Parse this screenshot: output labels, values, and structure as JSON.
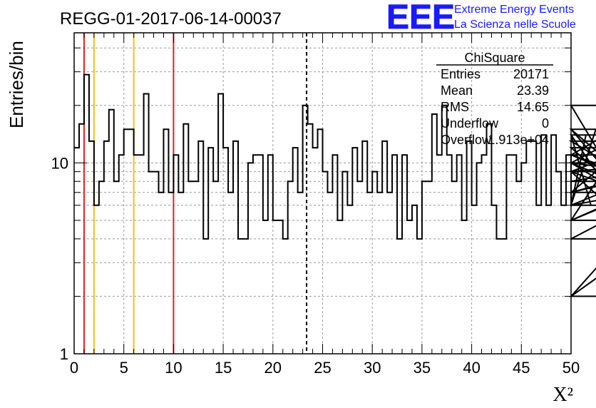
{
  "header": {
    "run_title": "REGG-01-2017-06-14-00037",
    "logo_text": "EEE",
    "logo_line1": "Extreme Energy Events",
    "logo_line2": "La Scienza nelle Scuole"
  },
  "stats_box": {
    "title": "ChiSquare",
    "rows": [
      {
        "label": "Entries",
        "value": "20171"
      },
      {
        "label": "Mean",
        "value": "23.39"
      },
      {
        "label": "RMS",
        "value": "14.65"
      },
      {
        "label": "Underflow",
        "value": "0"
      },
      {
        "label": "Overflow",
        "value": "1.913e+04"
      }
    ]
  },
  "colors": {
    "red_line": "#dd2222",
    "yellow_line": "#f0c020",
    "logo_blue": "#1a1aff",
    "grid": "#9a9a9a"
  },
  "chart_data": {
    "type": "bar",
    "histogram_style": "step",
    "xlabel": "X²",
    "ylabel": "Entries/bin",
    "xlim": [
      0,
      50
    ],
    "ylim": [
      1,
      48
    ],
    "y_scale": "log",
    "grid": true,
    "x_ticks": [
      "0",
      "5",
      "10",
      "15",
      "20",
      "25",
      "30",
      "35",
      "40",
      "45",
      "50"
    ],
    "y_ticks": [
      "1",
      "10"
    ],
    "bin_width": 0.5,
    "values": [
      12,
      16,
      29,
      13,
      6,
      8,
      13,
      19,
      8,
      11,
      15,
      15,
      11,
      11,
      23,
      9,
      9,
      7,
      15,
      7,
      11,
      7,
      16,
      8,
      8,
      13,
      4,
      12,
      8,
      23,
      12,
      7,
      13,
      4,
      4,
      10,
      11,
      11,
      5,
      11,
      5,
      5,
      4,
      8,
      12,
      7,
      20,
      16,
      12,
      15,
      9,
      7,
      11,
      5,
      9,
      6,
      12,
      8,
      13,
      7,
      9,
      7,
      13,
      7,
      11,
      4,
      11,
      5,
      6,
      4,
      8,
      8,
      18,
      11,
      20,
      11,
      8,
      11,
      5,
      13,
      6,
      10,
      11,
      16,
      6,
      4,
      4,
      11,
      11,
      8,
      10,
      13,
      13,
      6,
      14,
      6,
      14,
      9,
      6,
      11,
      6,
      6,
      6,
      14,
      6,
      15,
      11,
      14,
      7,
      11,
      9,
      5,
      15,
      6,
      7,
      9,
      13,
      7,
      9,
      10,
      6,
      10,
      20,
      2,
      10,
      4,
      9,
      5,
      10,
      8,
      8,
      11,
      5,
      12,
      2,
      9
    ],
    "vertical_markers": [
      {
        "x": 1,
        "color": "red"
      },
      {
        "x": 2,
        "color": "yellow"
      },
      {
        "x": 6,
        "color": "yellow"
      },
      {
        "x": 10,
        "color": "red"
      },
      {
        "x": 23.39,
        "color": "black",
        "style": "dashed"
      }
    ]
  }
}
